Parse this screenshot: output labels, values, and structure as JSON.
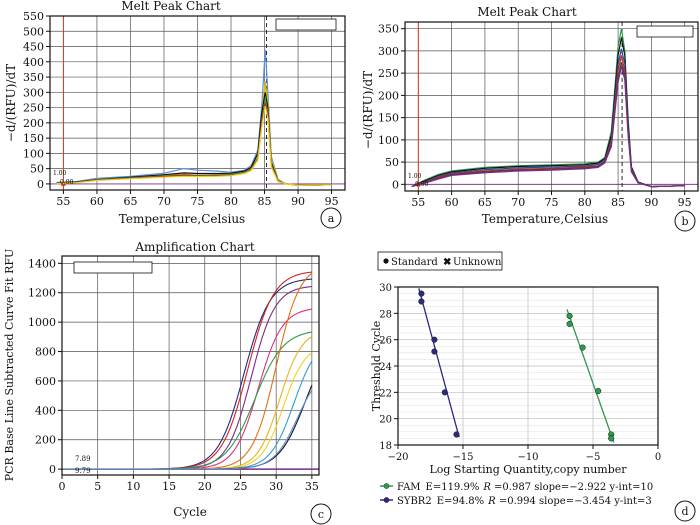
{
  "chart_data": [
    {
      "panel": "a",
      "type": "line",
      "title": "Melt Peak Chart",
      "xlabel": "Temperature,Celsius",
      "ylabel": "−d/(RFU)/dT",
      "xlim": [
        53,
        97
      ],
      "ylim": [
        -20,
        550
      ],
      "xticks": [
        55,
        60,
        65,
        70,
        75,
        80,
        85,
        90,
        95
      ],
      "yticks": [
        0,
        50,
        100,
        150,
        200,
        250,
        300,
        350,
        400,
        450,
        500,
        550
      ],
      "grid": true,
      "vline_x": 85.3,
      "threshold_label": "1.00",
      "threshold_label2": "0.00",
      "series": [
        {
          "color": "#5b8fd8",
          "x": [
            54,
            57,
            60,
            65,
            70,
            73,
            75,
            78,
            80,
            82,
            83,
            84,
            84.6,
            85.1,
            85.5,
            86,
            87,
            88,
            90,
            92,
            95
          ],
          "y": [
            5,
            8,
            18,
            25,
            35,
            50,
            45,
            42,
            38,
            45,
            60,
            110,
            260,
            440,
            300,
            90,
            15,
            2,
            -5,
            -4,
            -3
          ]
        },
        {
          "color": "#e3b400",
          "x": [
            54,
            57,
            60,
            65,
            70,
            73,
            75,
            78,
            80,
            82,
            83,
            84,
            84.6,
            85.1,
            85.5,
            86,
            87,
            88,
            90,
            92,
            95
          ],
          "y": [
            3,
            6,
            15,
            20,
            28,
            32,
            28,
            30,
            32,
            40,
            52,
            95,
            230,
            335,
            270,
            80,
            12,
            2,
            -5,
            -4,
            -3
          ]
        },
        {
          "color": "#e3c000",
          "x": [
            54,
            57,
            60,
            65,
            70,
            73,
            75,
            78,
            80,
            82,
            83,
            84,
            84.6,
            85.1,
            85.5,
            86,
            87,
            88,
            90,
            92,
            95
          ],
          "y": [
            2,
            5,
            12,
            18,
            26,
            28,
            25,
            27,
            30,
            38,
            50,
            90,
            220,
            320,
            260,
            75,
            10,
            1,
            -5,
            -4,
            -3
          ]
        },
        {
          "color": "#111111",
          "x": [
            54,
            57,
            60,
            65,
            70,
            73,
            75,
            78,
            80,
            82,
            83,
            84,
            84.6,
            85.1,
            85.5,
            86,
            87,
            88,
            90,
            92,
            95
          ],
          "y": [
            3,
            7,
            14,
            22,
            30,
            36,
            34,
            34,
            35,
            42,
            54,
            100,
            235,
            300,
            250,
            70,
            10,
            1,
            -5,
            -4,
            -3
          ]
        },
        {
          "color": "#2e9a4a",
          "x": [
            54,
            57,
            60,
            65,
            70,
            73,
            75,
            78,
            80,
            82,
            83,
            84,
            84.6,
            85.1,
            85.5,
            86,
            87,
            88,
            90,
            92,
            95
          ],
          "y": [
            2,
            6,
            13,
            20,
            26,
            30,
            28,
            29,
            31,
            38,
            48,
            85,
            210,
            280,
            235,
            65,
            9,
            1,
            -5,
            -4,
            -3
          ]
        },
        {
          "color": "#d42020",
          "x": [
            54,
            57,
            60,
            65,
            70,
            73,
            75,
            78,
            80,
            82,
            83,
            84,
            84.6,
            85.1,
            85.5,
            86,
            87,
            88,
            90,
            92,
            95
          ],
          "y": [
            2,
            5,
            12,
            18,
            24,
            28,
            26,
            27,
            28,
            35,
            46,
            80,
            200,
            265,
            225,
            60,
            8,
            1,
            -5,
            -4,
            -3
          ]
        },
        {
          "color": "#f0d020",
          "x": [
            54,
            57,
            60,
            65,
            70,
            73,
            75,
            78,
            80,
            82,
            83,
            84,
            84.6,
            85.1,
            85.5,
            86,
            87,
            88,
            90,
            92,
            95
          ],
          "y": [
            1,
            4,
            11,
            17,
            22,
            25,
            24,
            25,
            27,
            34,
            44,
            78,
            190,
            255,
            215,
            55,
            8,
            1,
            -5,
            -4,
            -3
          ]
        }
      ]
    },
    {
      "panel": "b",
      "type": "line",
      "title": "Melt Peak Chart",
      "xlabel": "Temperature,Celsius",
      "ylabel": "−d/(RFU)/dT",
      "xlim": [
        53,
        97
      ],
      "ylim": [
        -15,
        365
      ],
      "xticks": [
        55,
        60,
        65,
        70,
        75,
        80,
        85,
        90,
        95
      ],
      "yticks": [
        0,
        50,
        100,
        150,
        200,
        250,
        300,
        350
      ],
      "grid": true,
      "vline_x": 85.6,
      "threshold_label": "1.00",
      "threshold_label2": "0.00",
      "series": [
        {
          "color": "#2e9a4a",
          "x": [
            54,
            56,
            58,
            60,
            65,
            70,
            75,
            80,
            82,
            83,
            84,
            85,
            85.5,
            86,
            86.5,
            87,
            88,
            90,
            95
          ],
          "y": [
            -5,
            10,
            22,
            30,
            38,
            42,
            44,
            46,
            50,
            60,
            120,
            310,
            350,
            300,
            150,
            40,
            5,
            -5,
            -3
          ]
        },
        {
          "color": "#111111",
          "x": [
            54,
            56,
            58,
            60,
            65,
            70,
            75,
            80,
            82,
            83,
            84,
            85,
            85.5,
            86,
            86.5,
            87,
            88,
            90,
            95
          ],
          "y": [
            -5,
            8,
            20,
            28,
            36,
            40,
            42,
            44,
            48,
            58,
            110,
            290,
            330,
            290,
            140,
            38,
            5,
            -5,
            -3
          ]
        },
        {
          "color": "#1f4fa0",
          "x": [
            54,
            56,
            58,
            60,
            65,
            70,
            75,
            80,
            82,
            83,
            84,
            85,
            85.5,
            86,
            86.5,
            87,
            88,
            90,
            95
          ],
          "y": [
            -5,
            6,
            18,
            26,
            33,
            37,
            39,
            41,
            45,
            55,
            100,
            270,
            305,
            270,
            130,
            35,
            4,
            -5,
            -3
          ]
        },
        {
          "color": "#d42020",
          "x": [
            54,
            56,
            58,
            60,
            65,
            70,
            75,
            80,
            82,
            83,
            84,
            85,
            85.5,
            86,
            86.5,
            87,
            88,
            90,
            95
          ],
          "y": [
            -5,
            5,
            16,
            24,
            30,
            34,
            36,
            39,
            42,
            52,
            95,
            255,
            290,
            255,
            120,
            32,
            4,
            -5,
            -3
          ]
        },
        {
          "color": "#444444",
          "x": [
            54,
            56,
            58,
            60,
            65,
            70,
            75,
            80,
            82,
            83,
            84,
            85,
            85.5,
            86,
            86.5,
            87,
            88,
            90,
            95
          ],
          "y": [
            -5,
            4,
            14,
            22,
            28,
            32,
            34,
            37,
            40,
            50,
            90,
            240,
            275,
            245,
            115,
            30,
            4,
            -5,
            -3
          ]
        },
        {
          "color": "#7a2a8a",
          "x": [
            54,
            56,
            58,
            60,
            65,
            70,
            75,
            80,
            82,
            83,
            84,
            85,
            85.5,
            86,
            86.5,
            87,
            88,
            90,
            95
          ],
          "y": [
            -5,
            3,
            12,
            20,
            26,
            30,
            32,
            35,
            38,
            48,
            85,
            230,
            265,
            235,
            110,
            28,
            3,
            -5,
            -3
          ]
        }
      ]
    },
    {
      "panel": "c",
      "type": "line",
      "title": "Amplification Chart",
      "xlabel": "Cycle",
      "ylabel": "PCR Base Line Subtracted Curve Fit RFU",
      "xlim": [
        0,
        36
      ],
      "ylim": [
        -40,
        1450
      ],
      "xticks": [
        0,
        5,
        10,
        15,
        20,
        25,
        30,
        35
      ],
      "yticks": [
        0,
        200,
        400,
        600,
        800,
        1000,
        1200,
        1400
      ],
      "grid": true,
      "threshold_label": "7.89",
      "threshold_label2": "9.79",
      "series": [
        {
          "color": "#1f2a80",
          "mid": 25.5,
          "plateau": 1300,
          "k": 0.55
        },
        {
          "color": "#d42020",
          "mid": 26.0,
          "plateau": 1350,
          "k": 0.55
        },
        {
          "color": "#7a2a8a",
          "mid": 26.5,
          "plateau": 1250,
          "k": 0.6
        },
        {
          "color": "#e03080",
          "mid": 27.5,
          "plateau": 1100,
          "k": 0.6
        },
        {
          "color": "#2e9a4a",
          "mid": 27.0,
          "plateau": 950,
          "k": 0.5
        },
        {
          "color": "#e07010",
          "mid": 30.0,
          "plateau": 1400,
          "k": 0.6
        },
        {
          "color": "#f0b020",
          "mid": 30.5,
          "plateau": 950,
          "k": 0.65
        },
        {
          "color": "#f5d020",
          "mid": 31.0,
          "plateau": 850,
          "k": 0.65
        },
        {
          "color": "#30a0d0",
          "mid": 32.5,
          "plateau": 900,
          "k": 0.6
        },
        {
          "color": "#111111",
          "mid": 34.0,
          "plateau": 900,
          "k": 0.55
        },
        {
          "color": "#5b8fd8",
          "mid": 33.0,
          "plateau": 700,
          "k": 0.6
        }
      ]
    },
    {
      "panel": "d",
      "type": "scatter",
      "xlabel": "Log Starting Quantity,copy number",
      "ylabel": "Threshold Cycle",
      "xlim": [
        -20,
        0
      ],
      "ylim": [
        18,
        30
      ],
      "xticks": [
        -20,
        -15,
        -10,
        -5,
        0
      ],
      "yticks": [
        18,
        20,
        22,
        24,
        26,
        28,
        30
      ],
      "grid": true,
      "legend_top": {
        "standard": "Standard",
        "unknown": "Unknown"
      },
      "series": [
        {
          "name": "FAM",
          "color": "#2e9a4a",
          "points": [
            [
              -6.8,
              27.8
            ],
            [
              -6.8,
              27.2
            ],
            [
              -5.8,
              25.4
            ],
            [
              -4.6,
              22.1
            ],
            [
              -3.6,
              18.8
            ],
            [
              -3.6,
              18.5
            ]
          ],
          "fit": [
            [
              -7.0,
              28.3
            ],
            [
              -3.4,
              18.2
            ]
          ],
          "stats": {
            "label": "FAM",
            "E": "E=119.9%",
            "R": "R",
            "rtail": " =0.987 slope=−2.922 y-int=10"
          }
        },
        {
          "name": "SYBR2",
          "color": "#2a2a80",
          "points": [
            [
              -18.2,
              29.5
            ],
            [
              -18.2,
              28.9
            ],
            [
              -17.2,
              26.0
            ],
            [
              -17.2,
              25.1
            ],
            [
              -16.4,
              22.0
            ],
            [
              -15.5,
              18.8
            ]
          ],
          "fit": [
            [
              -18.4,
              29.9
            ],
            [
              -15.3,
              18.6
            ]
          ],
          "stats": {
            "label": "SYBR2",
            "E": "E=94.8%",
            "R": "R",
            "rtail": " =0.994 slope=−3.454 y-int=3"
          }
        }
      ]
    }
  ],
  "panel_tags": [
    "a",
    "b",
    "c",
    "d"
  ],
  "colors": {
    "frame": "#111111",
    "grid": "#555555",
    "grid_d": "#bbbbbb",
    "threshold": "#e03a1a",
    "vline": "#111111"
  }
}
